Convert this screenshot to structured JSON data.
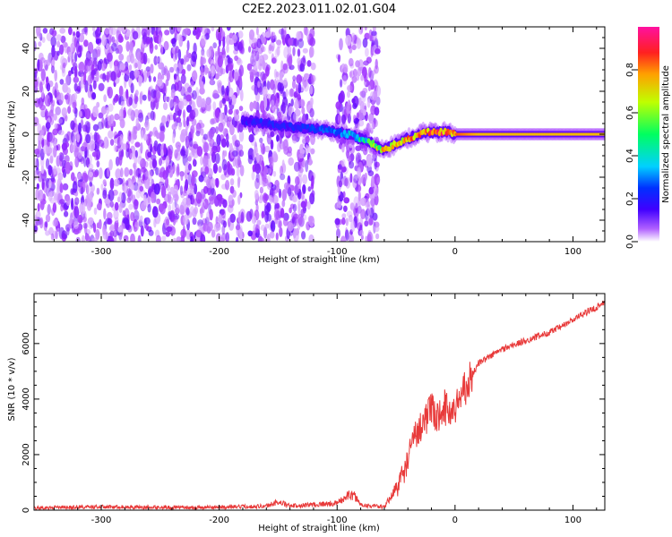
{
  "title": "C2E2.2023.011.02.01.G04",
  "colors": {
    "snr_line": "#e83a3a",
    "spectral_ridge": "#ff2020",
    "colormap": [
      "#ffffff",
      "#a030ff",
      "#5000ff",
      "#0040ff",
      "#00c8ff",
      "#00ff60",
      "#c8ff00",
      "#ffa000",
      "#ff2020",
      "#ff10a0"
    ]
  },
  "chart_data": [
    {
      "type": "heatmap",
      "xlabel": "Height of straight line (km)",
      "ylabel": "Frequency (Hz)",
      "xlim": [
        -357,
        127
      ],
      "ylim": [
        -50,
        50
      ],
      "xticks": [
        -300,
        -200,
        -100,
        0,
        100
      ],
      "yticks": [
        -40,
        -20,
        0,
        20,
        40
      ],
      "grid": false,
      "ridge": {
        "x": [
          -180,
          -170,
          -150,
          -130,
          -110,
          -90,
          -75,
          -62,
          -55,
          -45,
          -35,
          -25,
          -15,
          -5,
          0,
          20,
          60,
          100,
          127
        ],
        "y": [
          6,
          6,
          4,
          3,
          2,
          0,
          -3,
          -7,
          -6,
          -3,
          -1,
          1,
          1,
          1,
          0,
          0,
          0,
          0,
          0
        ],
        "amplitude": [
          0.25,
          0.3,
          0.3,
          0.3,
          0.35,
          0.45,
          0.55,
          0.75,
          0.8,
          0.8,
          0.85,
          0.85,
          0.9,
          0.9,
          0.85,
          0.75,
          0.75,
          0.75,
          0.75
        ]
      },
      "noise_regions": [
        [
          -357,
          -180
        ],
        [
          -175,
          -120
        ],
        [
          -100,
          -65
        ]
      ],
      "colorbar": {
        "label": "Normalized spectral amplitude",
        "range": [
          0,
          1
        ],
        "ticks": [
          "0.0",
          "0.2",
          "0.4",
          "0.6",
          "0.8"
        ]
      }
    },
    {
      "type": "line",
      "xlabel": "Height of straight line (km)",
      "ylabel": "SNR (10 * v/v)",
      "xlim": [
        -357,
        127
      ],
      "ylim": [
        0,
        7800
      ],
      "xticks": [
        -300,
        -200,
        -100,
        0,
        100
      ],
      "yticks": [
        0,
        2000,
        4000,
        6000
      ],
      "grid": false,
      "series": [
        {
          "x": [
            -357,
            -300,
            -250,
            -200,
            -160,
            -150,
            -140,
            -120,
            -100,
            -90,
            -85,
            -80,
            -70,
            -60,
            -50,
            -45,
            -40,
            -35,
            -30,
            -25,
            -20,
            -15,
            -10,
            -5,
            0,
            5,
            8,
            10,
            12,
            15,
            20,
            30,
            40,
            50,
            60,
            70,
            80,
            90,
            100,
            110,
            120,
            127
          ],
          "y": [
            80,
            120,
            100,
            100,
            150,
            300,
            150,
            200,
            250,
            550,
            500,
            200,
            150,
            100,
            800,
            1200,
            1800,
            2600,
            3000,
            3300,
            3600,
            3300,
            3800,
            3500,
            3700,
            4000,
            4700,
            4200,
            4600,
            4900,
            5300,
            5550,
            5800,
            5950,
            6100,
            6250,
            6400,
            6600,
            6850,
            7100,
            7300,
            7550
          ]
        }
      ]
    }
  ]
}
